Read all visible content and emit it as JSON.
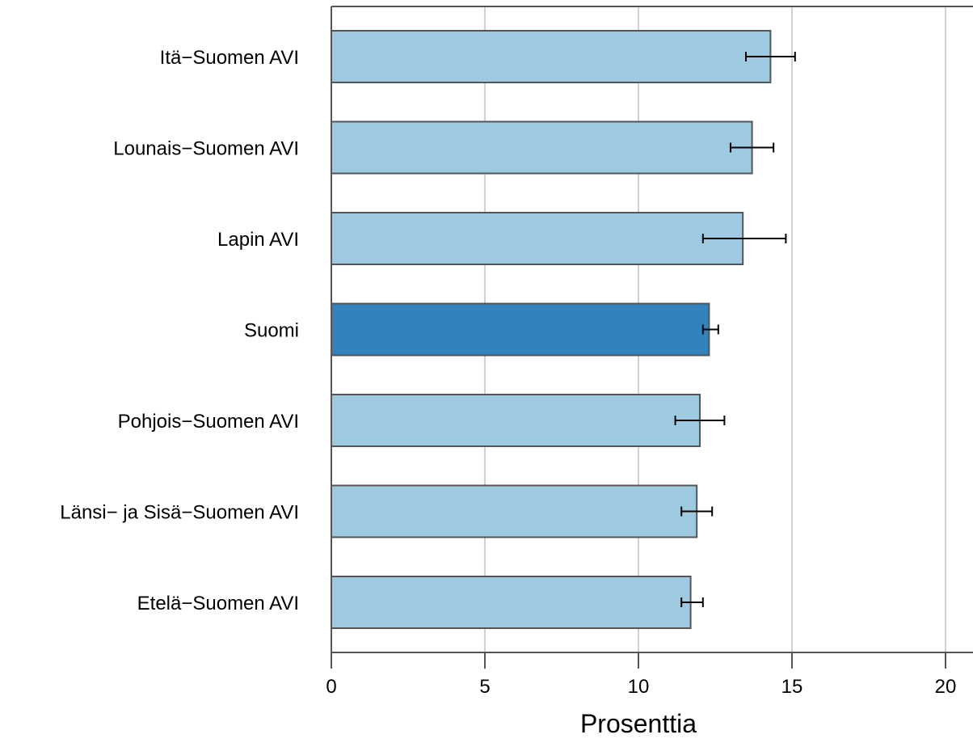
{
  "chart_data": {
    "type": "bar",
    "orientation": "horizontal",
    "categories": [
      "Itä−Suomen AVI",
      "Lounais−Suomen AVI",
      "Lapin AVI",
      "Suomi",
      "Pohjois−Suomen AVI",
      "Länsi− ja Sisä−Suomen AVI",
      "Etelä−Suomen AVI"
    ],
    "values": [
      14.3,
      13.7,
      13.4,
      12.3,
      12.0,
      11.9,
      11.7
    ],
    "error_low": [
      13.5,
      13.0,
      12.1,
      12.1,
      11.2,
      11.4,
      11.4
    ],
    "error_high": [
      15.1,
      14.4,
      14.8,
      12.6,
      12.8,
      12.4,
      12.1
    ],
    "highlight": "Suomi",
    "xlabel": "Prosenttia",
    "xlim": [
      0,
      21
    ],
    "xticks": [
      0,
      5,
      10,
      15,
      20
    ],
    "xtick_labels": [
      "0",
      "5",
      "10",
      "15",
      "20"
    ],
    "grid": "vertical",
    "colors": {
      "bar": "#9ecae1",
      "highlight_bar": "#3182bd",
      "bar_outline": "#555555",
      "grid": "#d0d0d0",
      "axis": "#555555",
      "error_bar": "#000000"
    }
  }
}
